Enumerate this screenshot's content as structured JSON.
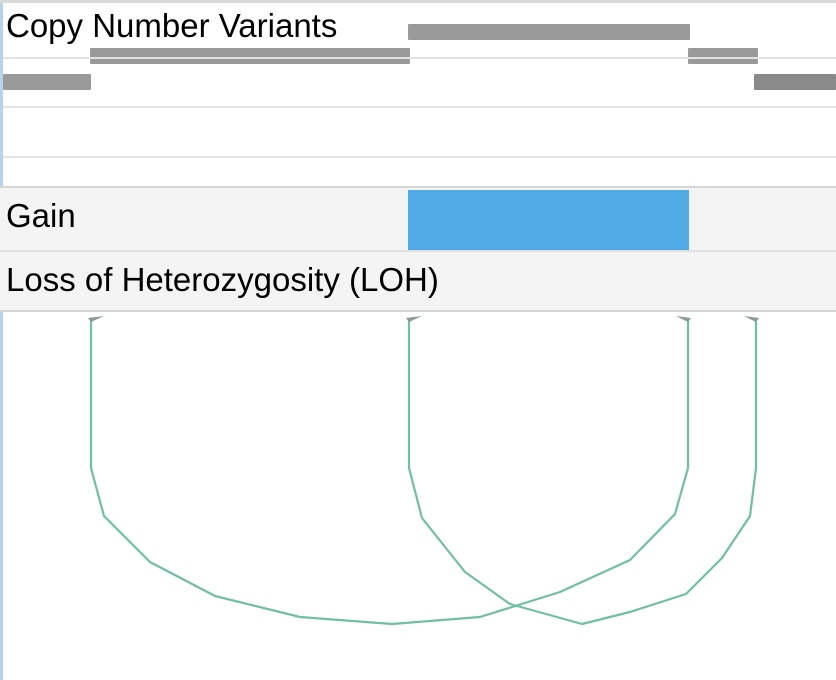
{
  "track": {
    "title": "Copy Number Variants",
    "segment_color": "#9a9a9a"
  },
  "rows": {
    "gain_label": "Gain",
    "loh_label": "Loss of Heterozygosity (LOH)",
    "gain_color": "#52abe6",
    "band_color": "#f4f4f4"
  },
  "arcs": {
    "color": "#6fbfa0",
    "count": 2
  }
}
